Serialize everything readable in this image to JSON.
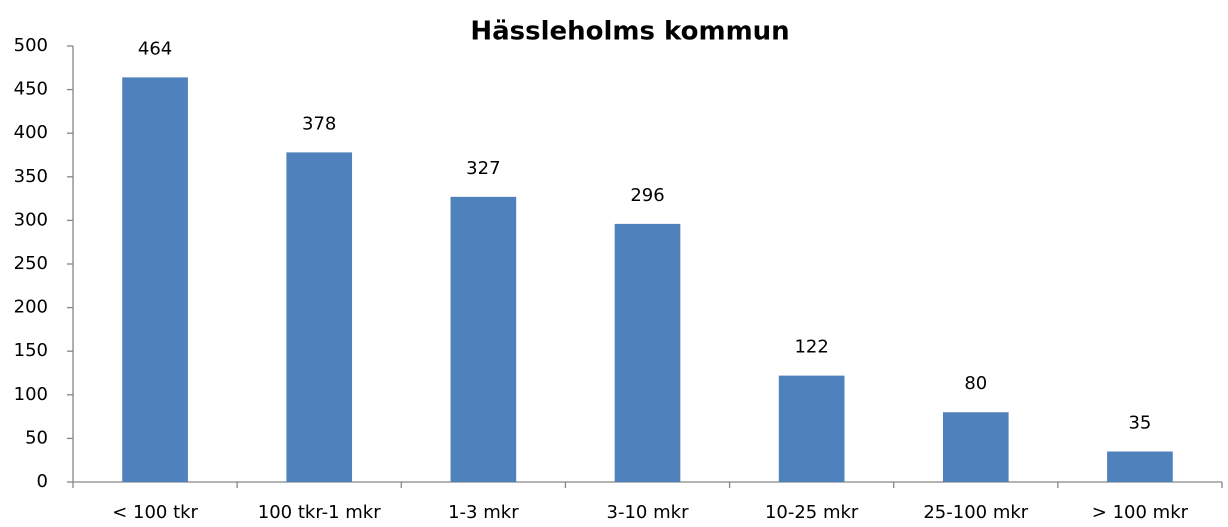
{
  "chart_data": {
    "type": "bar",
    "title": "Hässleholms kommun",
    "categories": [
      "< 100 tkr",
      "100 tkr-1 mkr",
      "1-3 mkr",
      "3-10 mkr",
      "10-25 mkr",
      "25-100 mkr",
      "> 100 mkr"
    ],
    "values": [
      464,
      378,
      327,
      296,
      122,
      80,
      35
    ],
    "color": "#4f81bd",
    "ylim": [
      0,
      500
    ],
    "yticks": [
      0,
      50,
      100,
      150,
      200,
      250,
      300,
      350,
      400,
      450,
      500
    ],
    "grid": false
  }
}
